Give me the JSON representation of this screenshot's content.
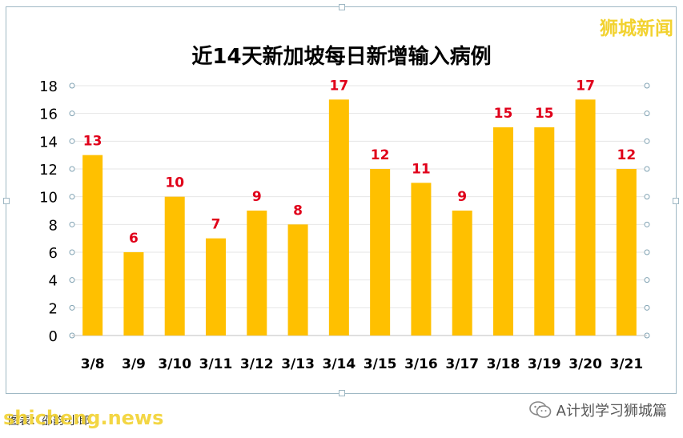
{
  "brand": "狮城新闻",
  "watermark": "shicheng.news",
  "source_label": "图表：邵韵·小郎",
  "wechat_account": "A计划学习狮城篇",
  "chart_data": {
    "type": "bar",
    "title": "近14天新加坡每日新增输入病例",
    "categories": [
      "3/8",
      "3/9",
      "3/10",
      "3/11",
      "3/12",
      "3/13",
      "3/14",
      "3/15",
      "3/16",
      "3/17",
      "3/18",
      "3/19",
      "3/20",
      "3/21"
    ],
    "values": [
      13,
      6,
      10,
      7,
      9,
      8,
      17,
      12,
      11,
      9,
      15,
      15,
      17,
      12
    ],
    "ylim": [
      0,
      18
    ],
    "yticks": [
      0,
      2,
      4,
      6,
      8,
      10,
      12,
      14,
      16,
      18
    ],
    "grid": true,
    "legend": "none",
    "bar_color": "#ffc000",
    "label_color": "#e0001a",
    "xlabel": "",
    "ylabel": ""
  }
}
